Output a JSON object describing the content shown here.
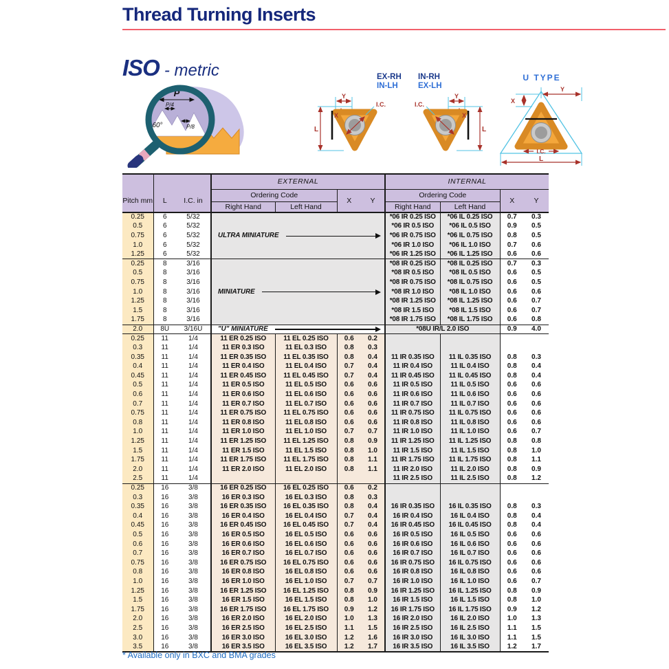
{
  "page": {
    "title": "Thread Turning Inserts",
    "series_title": "ISO",
    "series_subtitle": "- metric",
    "footnote": "* Available only in BXC and BMA grades"
  },
  "colors": {
    "title_navy": "#15277b",
    "rule_red": "#f2606a",
    "header_lavender": "#cdbfdf",
    "pitch_cream": "#fce9c2",
    "external_peach": "#f6e9dc",
    "internal_gray": "#e7e6e6",
    "right_hand_code": "#1c3a94",
    "left_hand_code": "#0e93ae",
    "footnote_blue": "#1f6cc0",
    "insert_orange": "#f4a73c",
    "dimension_red": "#a8322a",
    "guide_cyan": "#52c3e4"
  },
  "diagrams": {
    "profile": {
      "p": "P",
      "p4": "P/4",
      "p8": "P/8",
      "angle": "60°"
    },
    "inserts": {
      "left_top": "EX-RH",
      "left_bottom": "IN-LH",
      "right_top": "IN-RH",
      "right_bottom": "EX-LH"
    },
    "u_type": {
      "title": "U TYPE"
    },
    "dims": {
      "l": "L",
      "x": "X",
      "y": "Y",
      "ic": "I.C."
    }
  },
  "table": {
    "header": {
      "pitch": "Pitch\nmm",
      "l": "L",
      "ic": "I.C.\nin",
      "external": "EXTERNAL",
      "internal": "INTERNAL",
      "ordering_code": "Ordering Code",
      "right_hand": "Right Hand",
      "left_hand": "Left Hand",
      "x": "X",
      "y": "Y"
    },
    "sections": [
      {
        "id": "size-06",
        "type": "merged",
        "label": "ULTRA MINIATURE",
        "rows": [
          [
            "0.25",
            "6",
            "5/32",
            "*06 IR 0.25 ISO",
            "*06 IL 0.25 ISO",
            "0.7",
            "0.3"
          ],
          [
            "0.5",
            "6",
            "5/32",
            "*06 IR 0.5 ISO",
            "*06 IL 0.5 ISO",
            "0.9",
            "0.5"
          ],
          [
            "0.75",
            "6",
            "5/32",
            "*06 IR 0.75 ISO",
            "*06 IL 0.75 ISO",
            "0.8",
            "0.5"
          ],
          [
            "1.0",
            "6",
            "5/32",
            "*06 IR 1.0 ISO",
            "*06 IL 1.0 ISO",
            "0.7",
            "0.6"
          ],
          [
            "1.25",
            "6",
            "5/32",
            "*06 IR 1.25 ISO",
            "*06 IL 1.25 ISO",
            "0.6",
            "0.6"
          ]
        ]
      },
      {
        "id": "size-08",
        "type": "merged",
        "label": "MINIATURE",
        "rows": [
          [
            "0.25",
            "8",
            "3/16",
            "*08 IR 0.25 ISO",
            "*08 IL 0.25 ISO",
            "0.7",
            "0.3"
          ],
          [
            "0.5",
            "8",
            "3/16",
            "*08 IR 0.5 ISO",
            "*08 IL 0.5 ISO",
            "0.6",
            "0.5"
          ],
          [
            "0.75",
            "8",
            "3/16",
            "*08 IR 0.75 ISO",
            "*08 IL 0.75 ISO",
            "0.6",
            "0.5"
          ],
          [
            "1.0",
            "8",
            "3/16",
            "*08 IR 1.0 ISO",
            "*08 IL 1.0 ISO",
            "0.6",
            "0.6"
          ],
          [
            "1.25",
            "8",
            "3/16",
            "*08 IR 1.25 ISO",
            "*08 IL 1.25 ISO",
            "0.6",
            "0.7"
          ],
          [
            "1.5",
            "8",
            "3/16",
            "*08 IR 1.5 ISO",
            "*08 IL 1.5 ISO",
            "0.6",
            "0.7"
          ],
          [
            "1.75",
            "8",
            "3/16",
            "*08 IR 1.75 ISO",
            "*08 IL 1.75 ISO",
            "0.6",
            "0.8"
          ]
        ]
      },
      {
        "id": "size-08u",
        "type": "u",
        "label": "\"U\" MINIATURE",
        "rows": [
          [
            "2.0",
            "8U",
            "3/16U",
            "*08U IR/L 2.0 ISO",
            "0.9",
            "4.0"
          ]
        ]
      },
      {
        "id": "size-11",
        "type": "normal",
        "rows": [
          [
            "0.25",
            "11",
            "1/4",
            "11 ER 0.25 ISO",
            "11 EL 0.25 ISO",
            "0.6",
            "0.2",
            "",
            "",
            "",
            ""
          ],
          [
            "0.3",
            "11",
            "1/4",
            "11 ER 0.3 ISO",
            "11 EL 0.3 ISO",
            "0.8",
            "0.3",
            "",
            "",
            "",
            ""
          ],
          [
            "0.35",
            "11",
            "1/4",
            "11 ER 0.35 ISO",
            "11 EL 0.35 ISO",
            "0.8",
            "0.4",
            "11 IR 0.35 ISO",
            "11 IL 0.35 ISO",
            "0.8",
            "0.3"
          ],
          [
            "0.4",
            "11",
            "1/4",
            "11 ER 0.4 ISO",
            "11 EL 0.4 ISO",
            "0.7",
            "0.4",
            "11 IR 0.4 ISO",
            "11 IL 0.4 ISO",
            "0.8",
            "0.4"
          ],
          [
            "0.45",
            "11",
            "1/4",
            "11 ER 0.45 ISO",
            "11 EL 0.45 ISO",
            "0.7",
            "0.4",
            "11 IR 0.45 ISO",
            "11 IL 0.45 ISO",
            "0.8",
            "0.4"
          ],
          [
            "0.5",
            "11",
            "1/4",
            "11 ER 0.5 ISO",
            "11 EL 0.5 ISO",
            "0.6",
            "0.6",
            "11 IR 0.5 ISO",
            "11 IL 0.5 ISO",
            "0.6",
            "0.6"
          ],
          [
            "0.6",
            "11",
            "1/4",
            "11 ER 0.6 ISO",
            "11 EL 0.6 ISO",
            "0.6",
            "0.6",
            "11 IR 0.6 ISO",
            "11 IL 0.6 ISO",
            "0.6",
            "0.6"
          ],
          [
            "0.7",
            "11",
            "1/4",
            "11 ER 0.7 ISO",
            "11 EL 0.7 ISO",
            "0.6",
            "0.6",
            "11 IR 0.7 ISO",
            "11 IL 0.7 ISO",
            "0.6",
            "0.6"
          ],
          [
            "0.75",
            "11",
            "1/4",
            "11 ER 0.75 ISO",
            "11 EL 0.75 ISO",
            "0.6",
            "0.6",
            "11 IR 0.75 ISO",
            "11 IL 0.75 ISO",
            "0.6",
            "0.6"
          ],
          [
            "0.8",
            "11",
            "1/4",
            "11 ER 0.8 ISO",
            "11 EL 0.8 ISO",
            "0.6",
            "0.6",
            "11 IR 0.8 ISO",
            "11 IL 0.8 ISO",
            "0.6",
            "0.6"
          ],
          [
            "1.0",
            "11",
            "1/4",
            "11 ER 1.0 ISO",
            "11 EL 1.0 ISO",
            "0.7",
            "0.7",
            "11 IR 1.0 ISO",
            "11 IL 1.0 ISO",
            "0.6",
            "0.7"
          ],
          [
            "1.25",
            "11",
            "1/4",
            "11 ER 1.25 ISO",
            "11 EL 1.25 ISO",
            "0.8",
            "0.9",
            "11 IR 1.25 ISO",
            "11 IL 1.25 ISO",
            "0.8",
            "0.8"
          ],
          [
            "1.5",
            "11",
            "1/4",
            "11 ER 1.5 ISO",
            "11 EL 1.5 ISO",
            "0.8",
            "1.0",
            "11 IR 1.5 ISO",
            "11 IL 1.5 ISO",
            "0.8",
            "1.0"
          ],
          [
            "1.75",
            "11",
            "1/4",
            "11 ER 1.75 ISO",
            "11 EL 1.75 ISO",
            "0.8",
            "1.1",
            "11 IR 1.75 ISO",
            "11 IL 1.75 ISO",
            "0.8",
            "1.1"
          ],
          [
            "2.0",
            "11",
            "1/4",
            "11 ER 2.0 ISO",
            "11 EL 2.0 ISO",
            "0.8",
            "1.1",
            "11 IR 2.0 ISO",
            "11 IL 2.0 ISO",
            "0.8",
            "0.9"
          ],
          [
            "2.5",
            "11",
            "1/4",
            "",
            "",
            "",
            "",
            "11 IR 2.5 ISO",
            "11 IL 2.5 ISO",
            "0.8",
            "1.2"
          ]
        ]
      },
      {
        "id": "size-16",
        "type": "normal",
        "rows": [
          [
            "0.25",
            "16",
            "3/8",
            "16 ER 0.25 ISO",
            "16 EL 0.25 ISO",
            "0.6",
            "0.2",
            "",
            "",
            "",
            ""
          ],
          [
            "0.3",
            "16",
            "3/8",
            "16 ER 0.3 ISO",
            "16 EL 0.3 ISO",
            "0.8",
            "0.3",
            "",
            "",
            "",
            ""
          ],
          [
            "0.35",
            "16",
            "3/8",
            "16 ER 0.35 ISO",
            "16 EL 0.35 ISO",
            "0.8",
            "0.4",
            "16 IR 0.35 ISO",
            "16 IL 0.35 ISO",
            "0.8",
            "0.3"
          ],
          [
            "0.4",
            "16",
            "3/8",
            "16 ER 0.4 ISO",
            "16 EL 0.4 ISO",
            "0.7",
            "0.4",
            "16 IR 0.4 ISO",
            "16 IL 0.4 ISO",
            "0.8",
            "0.4"
          ],
          [
            "0.45",
            "16",
            "3/8",
            "16 ER 0.45 ISO",
            "16 EL 0.45 ISO",
            "0.7",
            "0.4",
            "16 IR 0.45 ISO",
            "16 IL 0.45 ISO",
            "0.8",
            "0.4"
          ],
          [
            "0.5",
            "16",
            "3/8",
            "16 ER 0.5 ISO",
            "16 EL 0.5 ISO",
            "0.6",
            "0.6",
            "16 IR 0.5 ISO",
            "16 IL 0.5 ISO",
            "0.6",
            "0.6"
          ],
          [
            "0.6",
            "16",
            "3/8",
            "16 ER 0.6 ISO",
            "16 EL 0.6 ISO",
            "0.6",
            "0.6",
            "16 IR 0.6 ISO",
            "16 IL 0.6 ISO",
            "0.6",
            "0.6"
          ],
          [
            "0.7",
            "16",
            "3/8",
            "16 ER 0.7 ISO",
            "16 EL 0.7 ISO",
            "0.6",
            "0.6",
            "16 IR 0.7 ISO",
            "16 IL 0.7 ISO",
            "0.6",
            "0.6"
          ],
          [
            "0.75",
            "16",
            "3/8",
            "16 ER 0.75 ISO",
            "16 EL 0.75 ISO",
            "0.6",
            "0.6",
            "16 IR 0.75 ISO",
            "16 IL 0.75 ISO",
            "0.6",
            "0.6"
          ],
          [
            "0.8",
            "16",
            "3/8",
            "16 ER 0.8 ISO",
            "16 EL 0.8 ISO",
            "0.6",
            "0.6",
            "16 IR 0.8 ISO",
            "16 IL 0.8 ISO",
            "0.6",
            "0.6"
          ],
          [
            "1.0",
            "16",
            "3/8",
            "16 ER 1.0 ISO",
            "16 EL 1.0 ISO",
            "0.7",
            "0.7",
            "16 IR 1.0 ISO",
            "16 IL 1.0 ISO",
            "0.6",
            "0.7"
          ],
          [
            "1.25",
            "16",
            "3/8",
            "16 ER 1.25 ISO",
            "16 EL 1.25 ISO",
            "0.8",
            "0.9",
            "16 IR 1.25 ISO",
            "16 IL 1.25 ISO",
            "0.8",
            "0.9"
          ],
          [
            "1.5",
            "16",
            "3/8",
            "16 ER 1.5 ISO",
            "16 EL 1.5 ISO",
            "0.8",
            "1.0",
            "16 IR 1.5 ISO",
            "16 IL 1.5 ISO",
            "0.8",
            "1.0"
          ],
          [
            "1.75",
            "16",
            "3/8",
            "16 ER 1.75 ISO",
            "16 EL 1.75 ISO",
            "0.9",
            "1.2",
            "16 IR 1.75 ISO",
            "16 IL 1.75 ISO",
            "0.9",
            "1.2"
          ],
          [
            "2.0",
            "16",
            "3/8",
            "16 ER 2.0 ISO",
            "16 EL 2.0 ISO",
            "1.0",
            "1.3",
            "16 IR 2.0 ISO",
            "16 IL 2.0 ISO",
            "1.0",
            "1.3"
          ],
          [
            "2.5",
            "16",
            "3/8",
            "16 ER 2.5 ISO",
            "16 EL 2.5 ISO",
            "1.1",
            "1.5",
            "16 IR 2.5 ISO",
            "16 IL 2.5 ISO",
            "1.1",
            "1.5"
          ],
          [
            "3.0",
            "16",
            "3/8",
            "16 ER 3.0 ISO",
            "16 EL 3.0 ISO",
            "1.2",
            "1.6",
            "16 IR 3.0 ISO",
            "16 IL 3.0 ISO",
            "1.1",
            "1.5"
          ],
          [
            "3.5",
            "16",
            "3/8",
            "16 ER 3.5 ISO",
            "16 EL 3.5 ISO",
            "1.2",
            "1.7",
            "16 IR 3.5 ISO",
            "16 IL 3.5 ISO",
            "1.2",
            "1.7"
          ]
        ]
      }
    ]
  }
}
